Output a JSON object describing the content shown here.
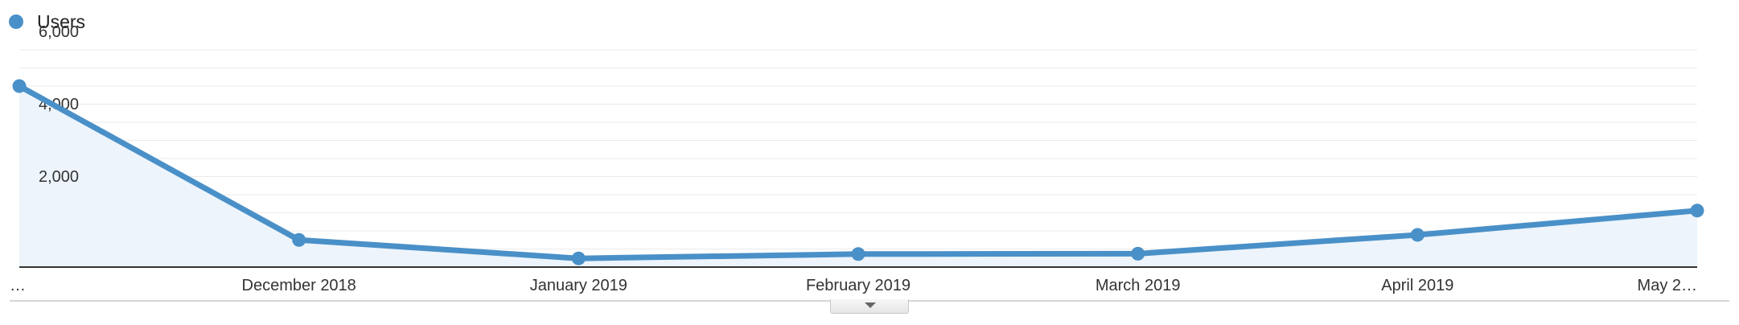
{
  "chart_data": {
    "type": "area",
    "legend": {
      "position": "top-left",
      "color": "#4a90c8"
    },
    "series": [
      {
        "name": "Users",
        "color": "#4a90c8",
        "values": [
          5000,
          750,
          240,
          360,
          370,
          890,
          1560
        ]
      }
    ],
    "categories": [
      "…",
      "December 2018",
      "January 2019",
      "February 2019",
      "March 2019",
      "April 2019",
      "May 2…"
    ],
    "yticks": [
      2000,
      4000,
      6000
    ],
    "ytick_labels": [
      "2,000",
      "4,000",
      "6,000"
    ],
    "ylim": [
      0,
      6000
    ],
    "grid": true,
    "colors": {
      "line": "#4a90c8",
      "fill": "#edf4fb",
      "grid": "#ebebeb",
      "axis": "#333333"
    }
  }
}
